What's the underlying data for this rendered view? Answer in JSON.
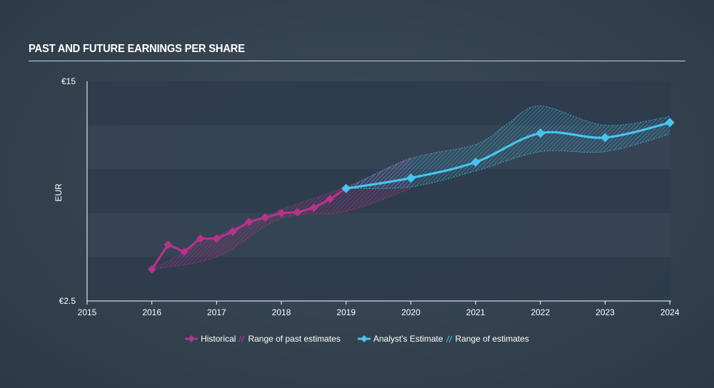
{
  "chart_data": {
    "type": "line",
    "title": "PAST AND FUTURE EARNINGS PER SHARE",
    "ylabel": "EUR",
    "xlabel": "",
    "xlim": [
      2015,
      2024.02
    ],
    "ylim": [
      2.5,
      15
    ],
    "y_ticks": [
      {
        "value": 15,
        "label": "€15"
      },
      {
        "value": 2.5,
        "label": "€2.5"
      }
    ],
    "x_ticks": [
      2015,
      2016,
      2017,
      2018,
      2019,
      2020,
      2021,
      2022,
      2023,
      2024
    ],
    "band_count": 5,
    "series": [
      {
        "name": "Historical",
        "color": "#b5338a",
        "points": [
          [
            2016.0,
            4.3
          ],
          [
            2016.25,
            5.7
          ],
          [
            2016.5,
            5.3
          ],
          [
            2016.75,
            6.05
          ],
          [
            2017.0,
            6.05
          ],
          [
            2017.25,
            6.45
          ],
          [
            2017.5,
            7.0
          ],
          [
            2017.75,
            7.25
          ],
          [
            2018.0,
            7.5
          ],
          [
            2018.25,
            7.55
          ],
          [
            2018.5,
            7.8
          ],
          [
            2018.75,
            8.3
          ],
          [
            2019.0,
            8.9
          ]
        ]
      },
      {
        "name": "Analyst's Estimate",
        "color": "#48c4ef",
        "points": [
          [
            2019.0,
            8.9
          ],
          [
            2020.0,
            9.5
          ],
          [
            2021.0,
            10.4
          ],
          [
            2022.0,
            12.05
          ],
          [
            2023.0,
            11.8
          ],
          [
            2024.0,
            12.65
          ]
        ]
      }
    ],
    "ranges": [
      {
        "name": "Range of past estimates",
        "color": "#b5338a",
        "upper": [
          [
            2016.0,
            4.3
          ],
          [
            2017.0,
            6.2
          ],
          [
            2018.0,
            7.7
          ],
          [
            2019.0,
            9.0
          ],
          [
            2020.0,
            10.7
          ]
        ],
        "lower": [
          [
            2016.0,
            4.3
          ],
          [
            2017.0,
            5.0
          ],
          [
            2018.0,
            7.2
          ],
          [
            2019.0,
            7.6
          ],
          [
            2020.0,
            8.9
          ]
        ]
      },
      {
        "name": "Range of estimates",
        "color": "#48c4ef",
        "upper": [
          [
            2019.0,
            8.9
          ],
          [
            2020.0,
            10.6
          ],
          [
            2021.0,
            11.4
          ],
          [
            2021.5,
            12.6
          ],
          [
            2022.0,
            13.6
          ],
          [
            2023.0,
            12.5
          ],
          [
            2024.0,
            13.0
          ]
        ],
        "lower": [
          [
            2019.0,
            8.9
          ],
          [
            2020.0,
            9.0
          ],
          [
            2021.0,
            9.9
          ],
          [
            2022.0,
            11.0
          ],
          [
            2023.0,
            11.0
          ],
          [
            2024.0,
            12.0
          ]
        ]
      }
    ],
    "legend": {
      "position": "bottom",
      "items": [
        {
          "label": "Historical",
          "kind": "line",
          "color": "#b5338a"
        },
        {
          "label": "Range of past estimates",
          "kind": "hatch",
          "color": "#b5338a"
        },
        {
          "label": "Analyst's Estimate",
          "kind": "line",
          "color": "#48c4ef"
        },
        {
          "label": "Range of estimates",
          "kind": "hatch",
          "color": "#48c4ef"
        }
      ]
    }
  }
}
